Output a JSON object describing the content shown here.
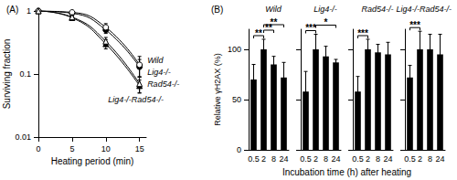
{
  "chart_data": [
    {
      "type": "line",
      "panel_label": "(A)",
      "xlabel": "Heating period (min)",
      "ylabel": "Surviving fraction",
      "x": [
        0,
        5,
        10,
        15
      ],
      "series": [
        {
          "name": "Wild",
          "color": "#000000",
          "marker": "circle_open",
          "line_style": "solid",
          "values": [
            1,
            0.95,
            0.55,
            0.14
          ],
          "errors": [
            0,
            0.05,
            0.08,
            0.05
          ]
        },
        {
          "name": "Lig4-/-",
          "color": "#000000",
          "marker": "circle",
          "line_style": "solid",
          "values": [
            1,
            0.92,
            0.5,
            0.13
          ],
          "errors": [
            0,
            0.04,
            0.06,
            0.04
          ]
        },
        {
          "name": "Rad54-/-",
          "color": "#000000",
          "marker": "triangle_open",
          "line_style": "solid",
          "values": [
            1,
            0.8,
            0.33,
            0.07
          ],
          "errors": [
            0,
            0.05,
            0.05,
            0.02
          ]
        },
        {
          "name": "Lig4-/-Rad54-/-",
          "color": "#000000",
          "marker": "triangle",
          "line_style": "solid",
          "values": [
            1,
            0.78,
            0.3,
            0.065
          ],
          "errors": [
            0,
            0.06,
            0.05,
            0.015
          ]
        }
      ],
      "xlim": [
        0,
        16
      ],
      "xticks": [
        0,
        5,
        10,
        15
      ],
      "ylim": [
        0.01,
        1
      ],
      "yticks": [
        0.01,
        0.1,
        1
      ],
      "log": "y",
      "grid": false
    },
    {
      "type": "bar",
      "panel_label": "(B)",
      "title": "Wild",
      "xlabel": "Incubation time (h) after heating",
      "ylabel": "Relative γH2AX (%)",
      "categories": [
        "0.5",
        "2",
        "8",
        "24"
      ],
      "values": [
        70,
        100,
        85,
        72
      ],
      "errors": [
        15,
        10,
        8,
        15
      ],
      "color": "#000000",
      "ylim": [
        0,
        120
      ],
      "yticks": [
        0,
        50,
        100
      ],
      "grid": false,
      "brackets": [
        {
          "from": "0.5",
          "to": "2",
          "label": "**"
        },
        {
          "from": "2",
          "to": "8",
          "label": "**"
        },
        {
          "from": "2",
          "to": "24",
          "label": "**"
        }
      ]
    },
    {
      "type": "bar",
      "title": "Lig4-/-",
      "categories": [
        "0.5",
        "2",
        "8",
        "24"
      ],
      "values": [
        58,
        100,
        93,
        87
      ],
      "errors": [
        20,
        15,
        10,
        3
      ],
      "color": "#000000",
      "ylim": [
        0,
        120
      ],
      "yticks": [
        0,
        50,
        100
      ],
      "grid": false,
      "tick_labels": "x",
      "brackets": [
        {
          "from": "0.5",
          "to": "2",
          "label": "***"
        },
        {
          "from": "2",
          "to": "24",
          "label": "*"
        }
      ]
    },
    {
      "type": "bar",
      "title": "Rad54-/-",
      "categories": [
        "0.5",
        "2",
        "8",
        "24"
      ],
      "values": [
        58,
        100,
        97,
        95
      ],
      "errors": [
        15,
        10,
        8,
        12
      ],
      "color": "#000000",
      "ylim": [
        0,
        120
      ],
      "yticks": [
        0,
        50,
        100
      ],
      "grid": false,
      "tick_labels": "x",
      "brackets": [
        {
          "from": "0.5",
          "to": "2",
          "label": "***"
        }
      ]
    },
    {
      "type": "bar",
      "title": "Lig4-/-Rad54-/-",
      "categories": [
        "0.5",
        "2",
        "8",
        "24"
      ],
      "values": [
        72,
        100,
        100,
        95
      ],
      "errors": [
        12,
        18,
        15,
        20
      ],
      "color": "#000000",
      "ylim": [
        0,
        120
      ],
      "yticks": [
        0,
        50,
        100
      ],
      "grid": false,
      "tick_labels": "x",
      "brackets": [
        {
          "from": "0.5",
          "to": "2",
          "label": "***"
        }
      ]
    }
  ]
}
